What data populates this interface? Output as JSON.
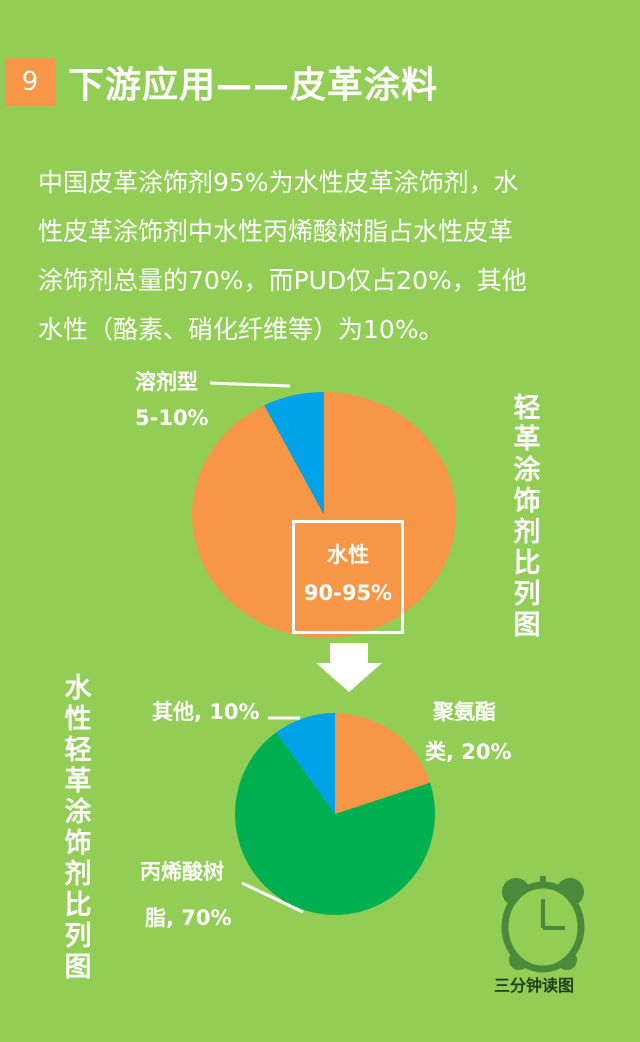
{
  "header": {
    "number": "9",
    "title": "下游应用——皮革涂料"
  },
  "paragraph": [
    "中国皮革涂饰剂95%为水性皮革涂饰剂，水",
    "性皮革涂饰剂中水性丙烯酸树脂占水性皮革",
    "涂饰剂总量的70%，而PUD仅占20%，其他",
    "水性（酪素、硝化纤维等）为10%。"
  ],
  "chart_data": [
    {
      "type": "pie",
      "title": "轻革涂饰剂比列图",
      "slices": [
        {
          "name": "水性",
          "label": "90-95%",
          "value": 92.5,
          "color": "#f79646"
        },
        {
          "name": "溶剂型",
          "label": "5-10%",
          "value": 7.5,
          "color": "#00a2e8"
        }
      ]
    },
    {
      "type": "pie",
      "title": "水性轻革涂饰剂比列图",
      "slices": [
        {
          "name": "聚氨酯类",
          "label": "聚氨酯类, 20%",
          "value": 20,
          "color": "#f79646"
        },
        {
          "name": "丙烯酸树脂",
          "label": "丙烯酸树脂, 70%",
          "value": 70,
          "color": "#00b050"
        },
        {
          "name": "其他",
          "label": "其他, 10%",
          "value": 10,
          "color": "#00a2e8"
        }
      ]
    }
  ],
  "labels": {
    "solvent_name": "溶剂型",
    "solvent_value": "5-10%",
    "water_name": "水性",
    "water_value": "90-95%",
    "other": "其他, 10%",
    "pu_1": "聚氨酯",
    "pu_2": "类, 20%",
    "acrylic_1": "丙烯酸树",
    "acrylic_2": "脂, 70%"
  },
  "logo": {
    "text": "三分钟读图",
    "icon": "alarm-clock-icon"
  }
}
